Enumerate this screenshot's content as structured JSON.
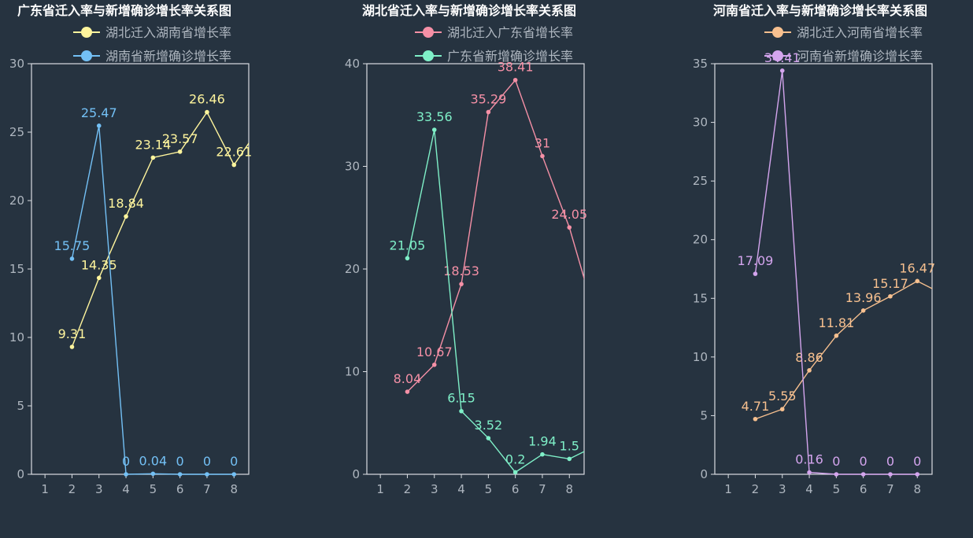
{
  "colors": {
    "background": "#263340",
    "axis": "#d9dde2",
    "tick_text": "#aeb6bf",
    "title": "#ffffff"
  },
  "chart_data": [
    {
      "type": "line",
      "title": "广东省迁入率与新增确诊增长率关系图",
      "x": [
        1,
        2,
        3,
        4,
        5,
        6,
        7,
        8
      ],
      "ylim": [
        0,
        30
      ],
      "yticks": [
        0,
        5,
        10,
        15,
        20,
        25,
        30
      ],
      "grid": false,
      "legend_placement": "top",
      "series": [
        {
          "name": "湖北迁入湖南省增长率",
          "color": "#fff59d",
          "x": [
            2,
            3,
            4,
            5,
            6,
            7,
            8,
            9
          ],
          "values": [
            9.31,
            14.35,
            18.84,
            23.14,
            23.57,
            26.46,
            22.61,
            25.5
          ],
          "labels": [
            "9.31",
            "14.35",
            "18.84",
            "23.14",
            "23.57",
            "26.46",
            "22.61",
            ""
          ]
        },
        {
          "name": "湖南省新增确诊增长率",
          "color": "#73c0f5",
          "x": [
            2,
            3,
            4,
            5,
            6,
            7,
            8
          ],
          "values": [
            15.75,
            25.47,
            0,
            0.04,
            0,
            0,
            0
          ],
          "labels": [
            "15.75",
            "25.47",
            "0",
            "0.04",
            "0",
            "0",
            "0"
          ]
        }
      ]
    },
    {
      "type": "line",
      "title": "湖北省迁入率与新增确诊增长率关系图",
      "x": [
        1,
        2,
        3,
        4,
        5,
        6,
        7,
        8
      ],
      "ylim": [
        0,
        40
      ],
      "yticks": [
        0,
        10,
        20,
        30,
        40
      ],
      "grid": false,
      "legend_placement": "top",
      "series": [
        {
          "name": "湖北迁入广东省增长率",
          "color": "#f590a6",
          "x": [
            2,
            3,
            4,
            5,
            6,
            7,
            8,
            9
          ],
          "values": [
            8.04,
            10.67,
            18.53,
            35.29,
            38.41,
            31,
            24.05,
            15
          ],
          "labels": [
            "8.04",
            "10.67",
            "18.53",
            "35.29",
            "38.41",
            "31",
            "24.05",
            ""
          ]
        },
        {
          "name": "广东省新增确诊增长率",
          "color": "#7ff0c8",
          "x": [
            2,
            3,
            4,
            5,
            6,
            7,
            8,
            9
          ],
          "values": [
            21.05,
            33.56,
            6.15,
            3.52,
            0.2,
            1.94,
            1.5,
            2.8
          ],
          "labels": [
            "21.05",
            "33.56",
            "6.15",
            "3.52",
            "0.2",
            "1.94",
            "1.5",
            ""
          ]
        }
      ]
    },
    {
      "type": "line",
      "title": "河南省迁入率与新增确诊增长率关系图",
      "x": [
        1,
        2,
        3,
        4,
        5,
        6,
        7,
        8
      ],
      "ylim": [
        0,
        35
      ],
      "yticks": [
        0,
        5,
        10,
        15,
        20,
        25,
        30,
        35
      ],
      "grid": false,
      "legend_placement": "top",
      "series": [
        {
          "name": "湖北迁入河南省增长率",
          "color": "#f7c08f",
          "x": [
            2,
            3,
            4,
            5,
            6,
            7,
            8,
            9
          ],
          "values": [
            4.71,
            5.55,
            8.86,
            11.81,
            13.96,
            15.17,
            16.47,
            15.3
          ],
          "labels": [
            "4.71",
            "5.55",
            "8.86",
            "11.81",
            "13.96",
            "15.17",
            "16.47",
            ""
          ]
        },
        {
          "name": "河南省新增确诊增长率",
          "color": "#d4a5ee",
          "x": [
            2,
            3,
            4,
            5,
            6,
            7,
            8
          ],
          "values": [
            17.09,
            34.41,
            0.16,
            0,
            0,
            0,
            0
          ],
          "labels": [
            "17.09",
            "34.41",
            "0.16",
            "0",
            "0",
            "0",
            "0"
          ]
        }
      ]
    }
  ]
}
